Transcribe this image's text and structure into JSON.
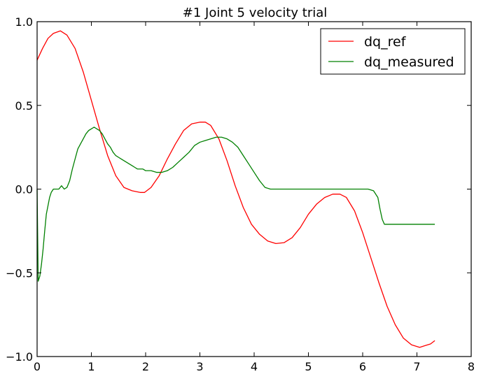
{
  "chart_data": {
    "type": "line",
    "title": "#1 Joint 5 velocity trial",
    "xlabel": "",
    "ylabel": "",
    "xlim": [
      0,
      8
    ],
    "ylim": [
      -1.0,
      1.0
    ],
    "xticks": [
      0,
      1,
      2,
      3,
      4,
      5,
      6,
      7,
      8
    ],
    "yticks": [
      -1.0,
      -0.5,
      0.0,
      0.5,
      1.0
    ],
    "xtick_labels": [
      "0",
      "1",
      "2",
      "3",
      "4",
      "5",
      "6",
      "7",
      "8"
    ],
    "ytick_labels": [
      "−1.0",
      "−0.5",
      "0.0",
      "0.5",
      "1.0"
    ],
    "grid": false,
    "legend_position": "top-right",
    "series": [
      {
        "name": "dq_ref",
        "color": "#ff0000",
        "x": [
          0.0,
          0.1,
          0.2,
          0.3,
          0.43,
          0.55,
          0.7,
          0.85,
          1.0,
          1.15,
          1.3,
          1.45,
          1.6,
          1.75,
          1.9,
          1.98,
          2.1,
          2.25,
          2.4,
          2.55,
          2.7,
          2.85,
          3.0,
          3.1,
          3.2,
          3.35,
          3.5,
          3.65,
          3.8,
          3.95,
          4.1,
          4.25,
          4.4,
          4.55,
          4.7,
          4.85,
          5.0,
          5.15,
          5.3,
          5.45,
          5.58,
          5.7,
          5.85,
          6.0,
          6.15,
          6.3,
          6.45,
          6.6,
          6.75,
          6.9,
          7.05,
          7.15,
          7.25,
          7.33
        ],
        "y": [
          0.77,
          0.84,
          0.9,
          0.93,
          0.945,
          0.92,
          0.84,
          0.7,
          0.53,
          0.36,
          0.2,
          0.08,
          0.01,
          -0.01,
          -0.02,
          -0.02,
          0.01,
          0.08,
          0.18,
          0.27,
          0.35,
          0.39,
          0.4,
          0.4,
          0.38,
          0.3,
          0.17,
          0.02,
          -0.11,
          -0.21,
          -0.27,
          -0.31,
          -0.325,
          -0.32,
          -0.29,
          -0.23,
          -0.15,
          -0.09,
          -0.05,
          -0.03,
          -0.03,
          -0.05,
          -0.13,
          -0.26,
          -0.41,
          -0.56,
          -0.7,
          -0.81,
          -0.89,
          -0.93,
          -0.945,
          -0.935,
          -0.925,
          -0.905
        ]
      },
      {
        "name": "dq_measured",
        "color": "#008000",
        "x": [
          0.0,
          0.02,
          0.05,
          0.08,
          0.11,
          0.14,
          0.17,
          0.2,
          0.23,
          0.26,
          0.3,
          0.35,
          0.4,
          0.45,
          0.5,
          0.55,
          0.6,
          0.65,
          0.7,
          0.75,
          0.8,
          0.85,
          0.9,
          0.95,
          1.0,
          1.05,
          1.1,
          1.15,
          1.2,
          1.25,
          1.3,
          1.35,
          1.4,
          1.45,
          1.5,
          1.55,
          1.6,
          1.65,
          1.7,
          1.75,
          1.8,
          1.85,
          1.9,
          1.95,
          2.0,
          2.1,
          2.2,
          2.3,
          2.4,
          2.5,
          2.6,
          2.7,
          2.8,
          2.9,
          3.0,
          3.1,
          3.2,
          3.3,
          3.4,
          3.5,
          3.6,
          3.7,
          3.8,
          3.9,
          4.0,
          4.1,
          4.2,
          4.3,
          4.5,
          4.7,
          4.9,
          5.1,
          5.3,
          5.5,
          5.7,
          5.9,
          6.0,
          6.1,
          6.2,
          6.28,
          6.32,
          6.36,
          6.4,
          6.5,
          6.8,
          7.1,
          7.33
        ],
        "y": [
          0.0,
          -0.55,
          -0.52,
          -0.45,
          -0.36,
          -0.25,
          -0.15,
          -0.1,
          -0.05,
          -0.02,
          0.0,
          0.0,
          0.0,
          0.02,
          0.0,
          0.01,
          0.05,
          0.12,
          0.18,
          0.24,
          0.27,
          0.3,
          0.33,
          0.35,
          0.36,
          0.37,
          0.36,
          0.35,
          0.33,
          0.3,
          0.27,
          0.25,
          0.22,
          0.2,
          0.19,
          0.18,
          0.17,
          0.16,
          0.15,
          0.14,
          0.13,
          0.12,
          0.12,
          0.12,
          0.11,
          0.11,
          0.1,
          0.1,
          0.11,
          0.13,
          0.16,
          0.19,
          0.22,
          0.26,
          0.28,
          0.29,
          0.3,
          0.31,
          0.31,
          0.3,
          0.28,
          0.25,
          0.2,
          0.15,
          0.1,
          0.05,
          0.01,
          0.0,
          0.0,
          0.0,
          0.0,
          0.0,
          0.0,
          0.0,
          0.0,
          0.0,
          0.0,
          0.0,
          -0.01,
          -0.05,
          -0.12,
          -0.18,
          -0.21,
          -0.21,
          -0.21,
          -0.21,
          -0.21
        ]
      }
    ]
  }
}
